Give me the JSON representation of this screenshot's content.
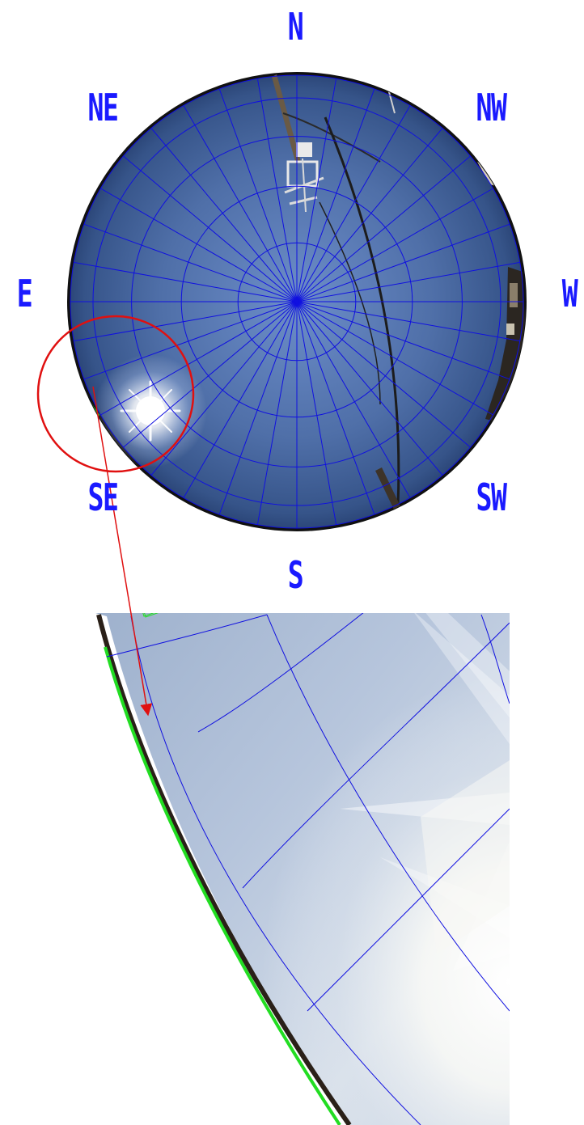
{
  "compass": {
    "n": "N",
    "ne": "NE",
    "nw": "NW",
    "e": "E",
    "w": "W",
    "se": "SE",
    "sw": "SW",
    "s": "S"
  },
  "colors": {
    "grid": "#1010e0",
    "label": "#1a1aff",
    "highlight_circle": "#e01010",
    "arrow": "#e01010",
    "horizon_mask": "#22dd22",
    "sky_center": "#5b7bb8",
    "sky_edge": "#1e3566"
  }
}
